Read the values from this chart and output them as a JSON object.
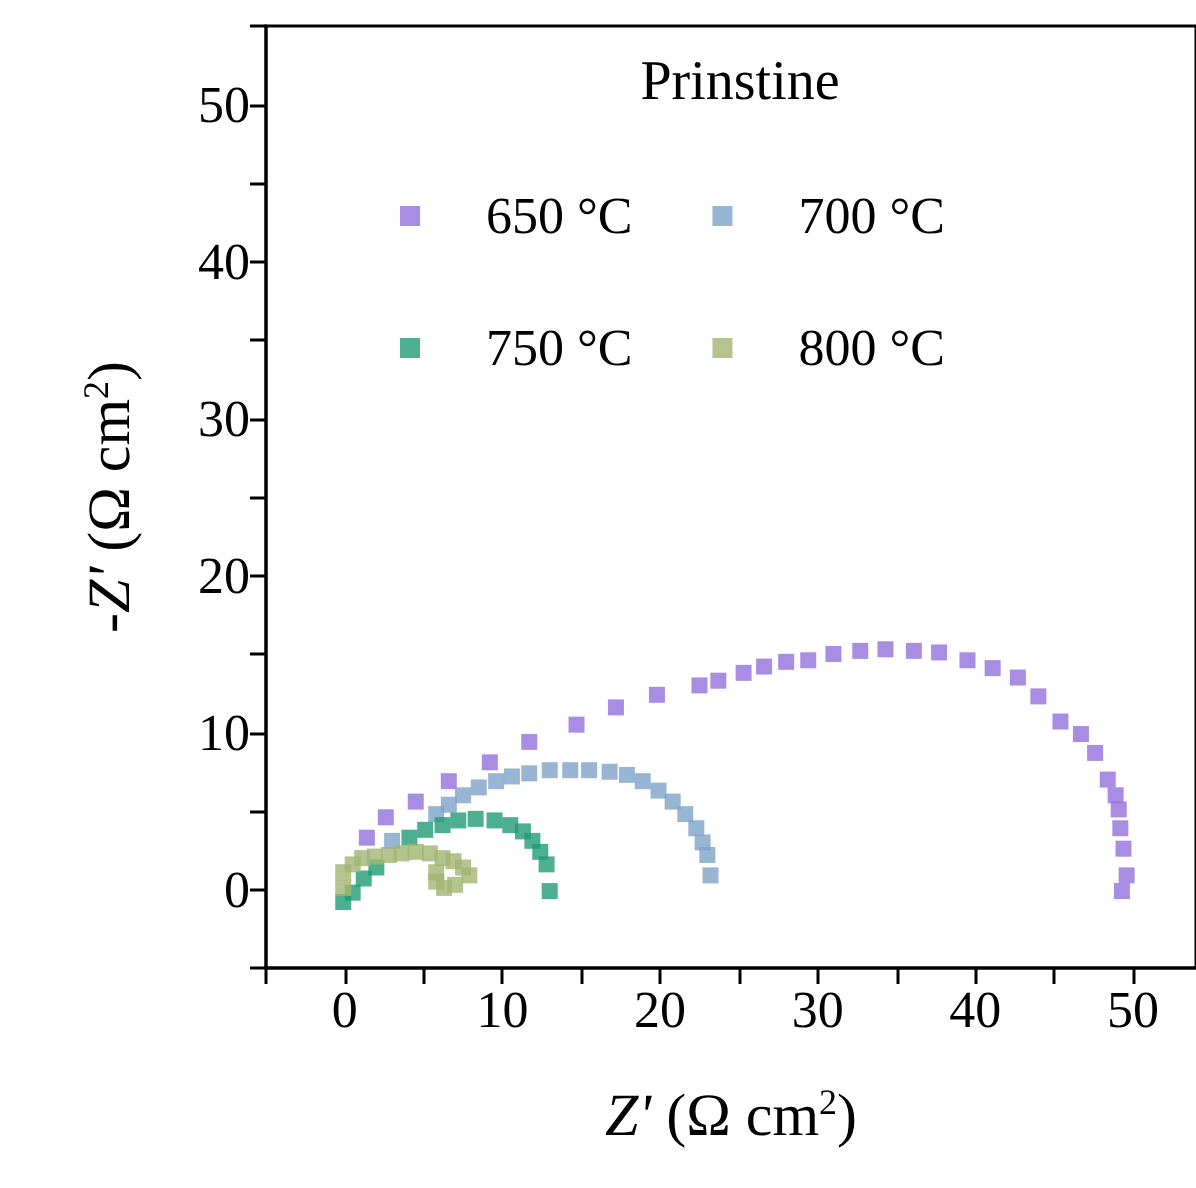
{
  "chart_data": {
    "type": "scatter",
    "xlabel": "Z' (Ω cm$^{2}$)",
    "ylabel": "-Z' (Ω cm$^{2}$)",
    "legend_title": "Prinstine",
    "legend": "top",
    "marker": "square",
    "grid": false,
    "xlim": [
      -5,
      54
    ],
    "ylim": [
      -5,
      55
    ],
    "xticks": [
      {
        "value": -5,
        "label": null
      },
      0,
      {
        "value": 5,
        "label": null
      },
      10,
      {
        "value": 15,
        "label": null
      },
      20,
      {
        "value": 25,
        "label": null
      },
      30,
      {
        "value": 35,
        "label": null
      },
      40,
      {
        "value": 45,
        "label": null
      },
      50
    ],
    "yticks": [
      {
        "value": -5,
        "label": null
      },
      0,
      {
        "value": 5,
        "label": null
      },
      10,
      {
        "value": 15,
        "label": null
      },
      20,
      {
        "value": 25,
        "label": null
      },
      30,
      {
        "value": 35,
        "label": null
      },
      40,
      {
        "value": 45,
        "label": null
      },
      50,
      {
        "value": 55,
        "label": null
      }
    ],
    "series": [
      {
        "name": "650 °C",
        "color": "#9370db",
        "x": [
          1.4,
          2.6,
          4.5,
          6.6,
          9.2,
          11.7,
          14.7,
          17.2,
          19.8,
          22.5,
          23.7,
          25.3,
          26.6,
          28.0,
          29.4,
          31.0,
          32.7,
          34.3,
          36.1,
          37.7,
          39.5,
          41.1,
          42.7,
          44.0,
          45.4,
          46.7,
          47.6,
          48.4,
          48.9,
          49.1,
          49.2,
          49.4,
          49.6,
          49.3
        ],
        "values": [
          3.3,
          4.6,
          5.6,
          6.9,
          8.1,
          9.4,
          10.5,
          11.6,
          12.4,
          13.0,
          13.3,
          13.8,
          14.2,
          14.5,
          14.6,
          15.0,
          15.2,
          15.3,
          15.2,
          15.1,
          14.6,
          14.1,
          13.5,
          12.3,
          10.7,
          9.9,
          8.7,
          7.0,
          6.0,
          5.1,
          3.9,
          2.6,
          0.9,
          -0.1
        ]
      },
      {
        "name": "700 °C",
        "color": "#7fa3c9",
        "x": [
          3.0,
          5.8,
          6.6,
          7.5,
          8.5,
          9.6,
          10.6,
          11.7,
          13.0,
          14.3,
          15.5,
          16.8,
          17.9,
          18.9,
          19.9,
          20.8,
          21.6,
          22.3,
          22.7,
          23.0,
          23.2
        ],
        "values": [
          3.1,
          4.8,
          5.4,
          6.0,
          6.5,
          6.9,
          7.2,
          7.4,
          7.6,
          7.6,
          7.6,
          7.5,
          7.3,
          6.9,
          6.3,
          5.6,
          4.8,
          3.9,
          3.0,
          2.2,
          0.9
        ]
      },
      {
        "name": "750 °C",
        "color": "#1f9b73",
        "x": [
          -0.1,
          0.5,
          1.2,
          2.0,
          4.1,
          5.1,
          6.2,
          7.2,
          8.3,
          9.5,
          10.5,
          11.3,
          11.9,
          12.4,
          12.8,
          13.0
        ],
        "values": [
          -0.8,
          -0.2,
          0.7,
          1.4,
          3.3,
          3.8,
          4.1,
          4.4,
          4.5,
          4.4,
          4.1,
          3.7,
          3.1,
          2.4,
          1.6,
          -0.1
        ]
      },
      {
        "name": "800 °C",
        "color": "#a2b472",
        "x": [
          -0.1,
          -0.1,
          0.5,
          1.1,
          1.9,
          2.8,
          3.6,
          4.5,
          5.4,
          6.2,
          6.9,
          7.5,
          7.9,
          7.0,
          6.3,
          5.8,
          5.8
        ],
        "values": [
          0.1,
          1.1,
          1.6,
          2.0,
          2.1,
          2.2,
          2.3,
          2.4,
          2.3,
          2.0,
          1.8,
          1.4,
          0.9,
          0.3,
          0.1,
          0.5,
          1.1
        ]
      }
    ]
  }
}
